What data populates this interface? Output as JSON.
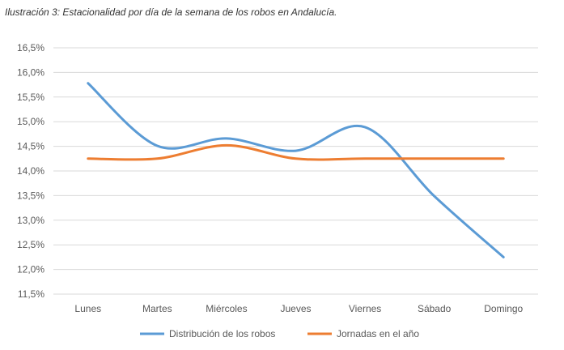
{
  "caption": "Ilustración 3: Estacionalidad por día de la semana de los robos en Andalucía.",
  "chart_data": {
    "type": "line",
    "title": "",
    "xlabel": "",
    "ylabel": "",
    "categories": [
      "Lunes",
      "Martes",
      "Miércoles",
      "Jueves",
      "Viernes",
      "Sábado",
      "Domingo"
    ],
    "ylim": [
      11.5,
      16.5
    ],
    "yticks": [
      "11,5%",
      "12,0%",
      "12,5%",
      "13,0%",
      "13,5%",
      "14,0%",
      "14,5%",
      "15,0%",
      "15,5%",
      "16,0%",
      "16,5%"
    ],
    "ytick_values": [
      11.5,
      12.0,
      12.5,
      13.0,
      13.5,
      14.0,
      14.5,
      15.0,
      15.5,
      16.0,
      16.5
    ],
    "grid": true,
    "smooth": true,
    "legend": "bottom",
    "series": [
      {
        "name": "Distribución de los robos",
        "color": "#5b9bd5",
        "values": [
          15.78,
          14.51,
          14.66,
          14.41,
          14.89,
          13.49,
          12.25
        ]
      },
      {
        "name": "Jornadas en el año",
        "color": "#ed7d31",
        "values": [
          14.25,
          14.25,
          14.52,
          14.25,
          14.25,
          14.25,
          14.25
        ]
      }
    ]
  }
}
